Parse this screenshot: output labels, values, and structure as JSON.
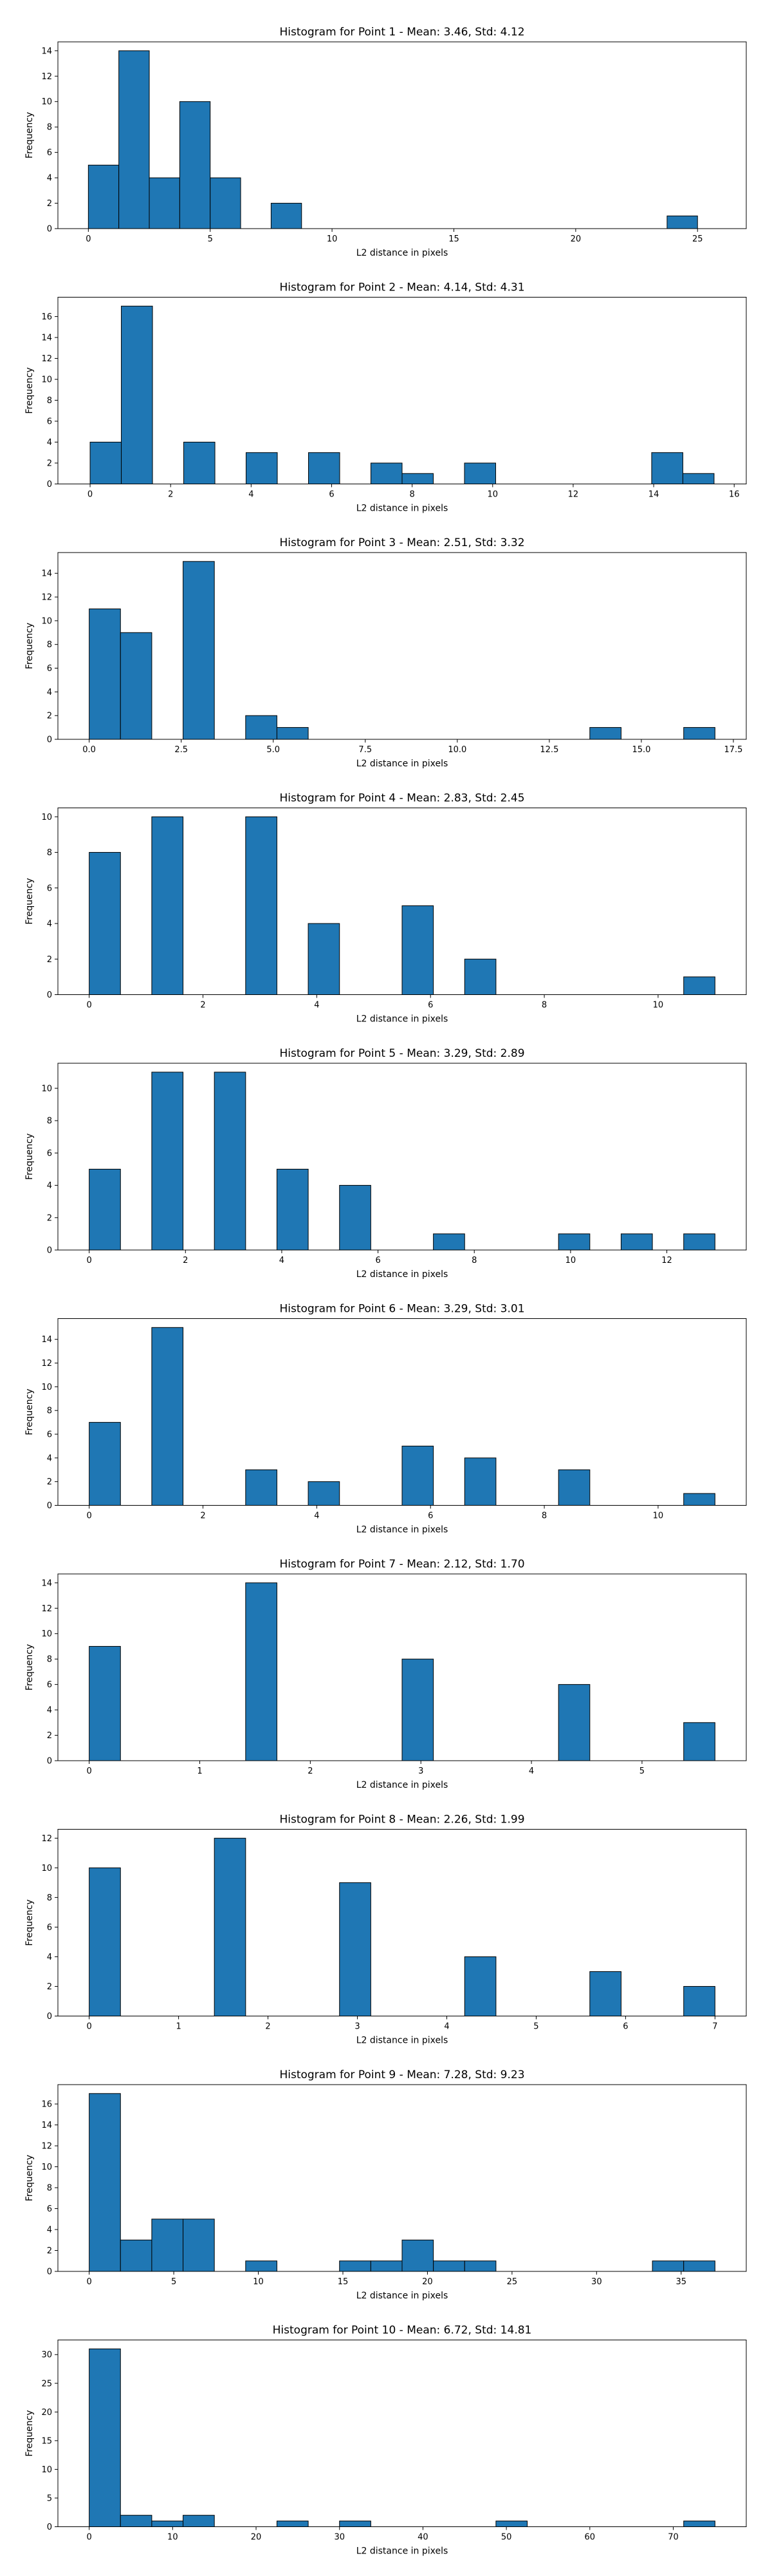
{
  "chart_data": [
    {
      "type": "bar",
      "title": "Histogram for Point 1 - Mean: 3.46, Std: 4.12",
      "xlabel": "L2 distance in pixels",
      "ylabel": "Frequency",
      "xlim": [
        -1.25,
        27.0
      ],
      "ylim": [
        0,
        14.7
      ],
      "xticks": [
        0,
        5,
        10,
        15,
        20,
        25
      ],
      "yticks": [
        0,
        2,
        4,
        6,
        8,
        10,
        12,
        14
      ],
      "bin_edges": [
        0.0,
        1.25,
        2.5,
        3.75,
        5.0,
        6.25,
        7.5,
        8.75,
        10.0,
        11.25,
        12.5,
        13.75,
        15.0,
        16.25,
        17.5,
        18.75,
        20.0,
        21.25,
        22.5,
        23.75,
        25.0
      ],
      "counts": [
        5,
        14,
        4,
        10,
        4,
        0,
        2,
        0,
        0,
        0,
        0,
        0,
        0,
        0,
        0,
        0,
        0,
        0,
        0,
        1
      ]
    },
    {
      "type": "bar",
      "title": "Histogram for Point 2 - Mean: 4.14, Std: 4.31",
      "xlabel": "L2 distance in pixels",
      "ylabel": "Frequency",
      "xlim": [
        -0.8,
        16.3
      ],
      "ylim": [
        0,
        17.85
      ],
      "xticks": [
        0,
        2,
        4,
        6,
        8,
        10,
        12,
        14,
        16
      ],
      "yticks": [
        0,
        2,
        4,
        6,
        8,
        10,
        12,
        14,
        16
      ],
      "bin_edges": [
        0.0,
        0.775,
        1.55,
        2.325,
        3.1,
        3.875,
        4.65,
        5.425,
        6.2,
        6.975,
        7.75,
        8.525,
        9.3,
        10.075,
        10.85,
        11.625,
        12.4,
        13.175,
        13.95,
        14.725,
        15.5
      ],
      "counts": [
        4,
        17,
        0,
        4,
        0,
        3,
        0,
        3,
        0,
        2,
        1,
        0,
        2,
        0,
        0,
        0,
        0,
        0,
        3,
        1
      ]
    },
    {
      "type": "bar",
      "title": "Histogram for Point 3 - Mean: 2.51, Std: 3.32",
      "xlabel": "L2 distance in pixels",
      "ylabel": "Frequency",
      "xlim": [
        -0.85,
        17.85
      ],
      "ylim": [
        0,
        15.75
      ],
      "xticks": [
        0.0,
        2.5,
        5.0,
        7.5,
        10.0,
        12.5,
        15.0,
        17.5
      ],
      "xtick_labels": [
        "0.0",
        "2.5",
        "5.0",
        "7.5",
        "10.0",
        "12.5",
        "15.0",
        "17.5"
      ],
      "yticks": [
        0,
        2,
        4,
        6,
        8,
        10,
        12,
        14
      ],
      "bin_edges": [
        0.0,
        0.85,
        1.7,
        2.55,
        3.4,
        4.25,
        5.1,
        5.95,
        6.8,
        7.65,
        8.5,
        9.35,
        10.2,
        11.05,
        11.9,
        12.75,
        13.6,
        14.45,
        15.3,
        16.15,
        17.0
      ],
      "counts": [
        11,
        9,
        0,
        15,
        0,
        2,
        1,
        0,
        0,
        0,
        0,
        0,
        0,
        0,
        0,
        0,
        1,
        0,
        0,
        1
      ]
    },
    {
      "type": "bar",
      "title": "Histogram for Point 4 - Mean: 2.83, Std: 2.45",
      "xlabel": "L2 distance in pixels",
      "ylabel": "Frequency",
      "xlim": [
        -0.55,
        11.55
      ],
      "ylim": [
        0,
        10.5
      ],
      "xticks": [
        0,
        2,
        4,
        6,
        8,
        10
      ],
      "yticks": [
        0,
        2,
        4,
        6,
        8,
        10
      ],
      "bin_edges": [
        0.0,
        0.55,
        1.1,
        1.65,
        2.2,
        2.75,
        3.3,
        3.85,
        4.4,
        4.95,
        5.5,
        6.05,
        6.6,
        7.15,
        7.7,
        8.25,
        8.8,
        9.35,
        9.9,
        10.45,
        11.0
      ],
      "counts": [
        8,
        0,
        10,
        0,
        0,
        10,
        0,
        4,
        0,
        0,
        5,
        0,
        2,
        0,
        0,
        0,
        0,
        0,
        0,
        1
      ]
    },
    {
      "type": "bar",
      "title": "Histogram for Point 5 - Mean: 3.29, Std: 2.89",
      "xlabel": "L2 distance in pixels",
      "ylabel": "Frequency",
      "xlim": [
        -0.65,
        13.65
      ],
      "ylim": [
        0,
        11.55
      ],
      "xticks": [
        0,
        2,
        4,
        6,
        8,
        10,
        12
      ],
      "yticks": [
        0,
        2,
        4,
        6,
        8,
        10
      ],
      "bin_edges": [
        0.0,
        0.65,
        1.3,
        1.95,
        2.6,
        3.25,
        3.9,
        4.55,
        5.2,
        5.85,
        6.5,
        7.15,
        7.8,
        8.45,
        9.1,
        9.75,
        10.4,
        11.05,
        11.7,
        12.35,
        13.0
      ],
      "counts": [
        5,
        0,
        11,
        0,
        11,
        0,
        5,
        0,
        4,
        0,
        0,
        1,
        0,
        0,
        0,
        1,
        0,
        1,
        0,
        1
      ]
    },
    {
      "type": "bar",
      "title": "Histogram for Point 6 - Mean: 3.29, Std: 3.01",
      "xlabel": "L2 distance in pixels",
      "ylabel": "Frequency",
      "xlim": [
        -0.55,
        11.55
      ],
      "ylim": [
        0,
        15.75
      ],
      "xticks": [
        0,
        2,
        4,
        6,
        8,
        10
      ],
      "yticks": [
        0,
        2,
        4,
        6,
        8,
        10,
        12,
        14
      ],
      "bin_edges": [
        0.0,
        0.55,
        1.1,
        1.65,
        2.2,
        2.75,
        3.3,
        3.85,
        4.4,
        4.95,
        5.5,
        6.05,
        6.6,
        7.15,
        7.7,
        8.25,
        8.8,
        9.35,
        9.9,
        10.45,
        11.0
      ],
      "counts": [
        7,
        0,
        15,
        0,
        0,
        3,
        0,
        2,
        0,
        0,
        5,
        0,
        4,
        0,
        0,
        3,
        0,
        0,
        0,
        1
      ]
    },
    {
      "type": "bar",
      "title": "Histogram for Point 7 - Mean: 2.12, Std: 1.70",
      "xlabel": "L2 distance in pixels",
      "ylabel": "Frequency",
      "xlim": [
        -0.283,
        5.943
      ],
      "ylim": [
        0,
        14.7
      ],
      "xticks": [
        0,
        1,
        2,
        3,
        4,
        5
      ],
      "yticks": [
        0,
        2,
        4,
        6,
        8,
        10,
        12,
        14
      ],
      "bin_edges": [
        0.0,
        0.283,
        0.566,
        0.849,
        1.132,
        1.415,
        1.698,
        1.981,
        2.264,
        2.547,
        2.83,
        3.113,
        3.396,
        3.679,
        3.962,
        4.245,
        4.528,
        4.811,
        5.094,
        5.377,
        5.66
      ],
      "counts": [
        9,
        0,
        0,
        0,
        0,
        14,
        0,
        0,
        0,
        0,
        8,
        0,
        0,
        0,
        0,
        6,
        0,
        0,
        0,
        3
      ]
    },
    {
      "type": "bar",
      "title": "Histogram for Point 8 - Mean: 2.26, Std: 1.99",
      "xlabel": "L2 distance in pixels",
      "ylabel": "Frequency",
      "xlim": [
        -0.35,
        7.35
      ],
      "ylim": [
        0,
        12.6
      ],
      "xticks": [
        0,
        1,
        2,
        3,
        4,
        5,
        6,
        7
      ],
      "yticks": [
        0,
        2,
        4,
        6,
        8,
        10,
        12
      ],
      "bin_edges": [
        0.0,
        0.35,
        0.7,
        1.05,
        1.4,
        1.75,
        2.1,
        2.45,
        2.8,
        3.15,
        3.5,
        3.85,
        4.2,
        4.55,
        4.9,
        5.25,
        5.6,
        5.95,
        6.3,
        6.65,
        7.0
      ],
      "counts": [
        10,
        0,
        0,
        0,
        12,
        0,
        0,
        0,
        9,
        0,
        0,
        0,
        4,
        0,
        0,
        0,
        3,
        0,
        0,
        2
      ]
    },
    {
      "type": "bar",
      "title": "Histogram for Point 9 - Mean: 7.28, Std: 9.23",
      "xlabel": "L2 distance in pixels",
      "ylabel": "Frequency",
      "xlim": [
        -1.85,
        38.85
      ],
      "ylim": [
        0,
        17.85
      ],
      "xticks": [
        0,
        5,
        10,
        15,
        20,
        25,
        30,
        35
      ],
      "yticks": [
        0,
        2,
        4,
        6,
        8,
        10,
        12,
        14,
        16
      ],
      "bin_edges": [
        0.0,
        1.85,
        3.7,
        5.55,
        7.4,
        9.25,
        11.1,
        12.95,
        14.8,
        16.65,
        18.5,
        20.35,
        22.2,
        24.05,
        25.9,
        27.75,
        29.6,
        31.45,
        33.3,
        35.15,
        37.0
      ],
      "counts": [
        17,
        3,
        5,
        5,
        0,
        1,
        0,
        0,
        1,
        1,
        3,
        1,
        1,
        0,
        0,
        0,
        0,
        0,
        1,
        1
      ]
    },
    {
      "type": "bar",
      "title": "Histogram for Point 10 - Mean: 6.72, Std: 14.81",
      "xlabel": "L2 distance in pixels",
      "ylabel": "Frequency",
      "xlim": [
        -3.75,
        78.75
      ],
      "ylim": [
        0,
        32.55
      ],
      "xticks": [
        0,
        10,
        20,
        30,
        40,
        50,
        60,
        70
      ],
      "yticks": [
        0,
        5,
        10,
        15,
        20,
        25,
        30
      ],
      "bin_edges": [
        0.0,
        3.75,
        7.5,
        11.25,
        15.0,
        18.75,
        22.5,
        26.25,
        30.0,
        33.75,
        37.5,
        41.25,
        45.0,
        48.75,
        52.5,
        56.25,
        60.0,
        63.75,
        67.5,
        71.25,
        75.0
      ],
      "counts": [
        31,
        2,
        1,
        2,
        0,
        0,
        1,
        0,
        1,
        0,
        0,
        0,
        0,
        1,
        0,
        0,
        0,
        0,
        0,
        1
      ]
    }
  ]
}
